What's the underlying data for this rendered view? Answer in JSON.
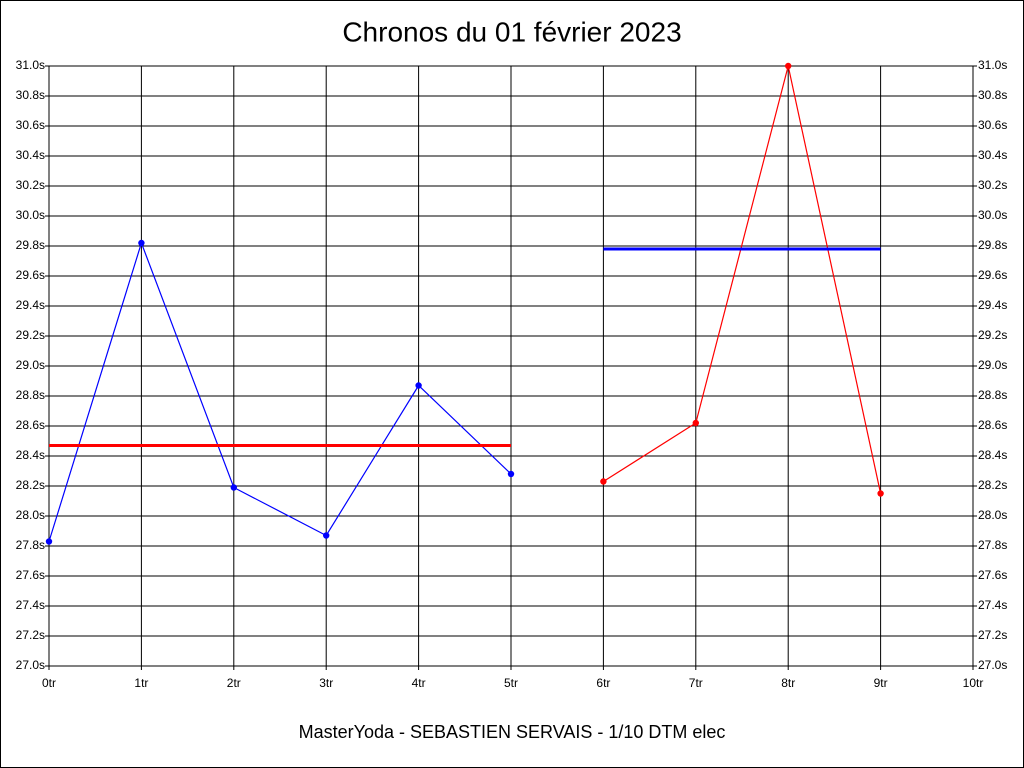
{
  "chart_data": {
    "type": "line",
    "title": "Chronos du 01 février 2023",
    "subtitle": "MasterYoda - SEBASTIEN SERVAIS - 1/10 DTM elec",
    "xlim": [
      0,
      10
    ],
    "xticks": [
      {
        "value": 0,
        "label": "0tr"
      },
      {
        "value": 1,
        "label": "1tr"
      },
      {
        "value": 2,
        "label": "2tr"
      },
      {
        "value": 3,
        "label": "3tr"
      },
      {
        "value": 4,
        "label": "4tr"
      },
      {
        "value": 5,
        "label": "5tr"
      },
      {
        "value": 6,
        "label": "6tr"
      },
      {
        "value": 7,
        "label": "7tr"
      },
      {
        "value": 8,
        "label": "8tr"
      },
      {
        "value": 9,
        "label": "9tr"
      },
      {
        "value": 10,
        "label": "10tr"
      }
    ],
    "ylim": [
      27.0,
      31.0
    ],
    "yticks": [
      {
        "value": 27.0,
        "label": "27.0s"
      },
      {
        "value": 27.2,
        "label": "27.2s"
      },
      {
        "value": 27.4,
        "label": "27.4s"
      },
      {
        "value": 27.6,
        "label": "27.6s"
      },
      {
        "value": 27.8,
        "label": "27.8s"
      },
      {
        "value": 28.0,
        "label": "28.0s"
      },
      {
        "value": 28.2,
        "label": "28.2s"
      },
      {
        "value": 28.4,
        "label": "28.4s"
      },
      {
        "value": 28.6,
        "label": "28.6s"
      },
      {
        "value": 28.8,
        "label": "28.8s"
      },
      {
        "value": 29.0,
        "label": "29.0s"
      },
      {
        "value": 29.2,
        "label": "29.2s"
      },
      {
        "value": 29.4,
        "label": "29.4s"
      },
      {
        "value": 29.6,
        "label": "29.6s"
      },
      {
        "value": 29.8,
        "label": "29.8s"
      },
      {
        "value": 30.0,
        "label": "30.0s"
      },
      {
        "value": 30.2,
        "label": "30.2s"
      },
      {
        "value": 30.4,
        "label": "30.4s"
      },
      {
        "value": 30.6,
        "label": "30.6s"
      },
      {
        "value": 30.8,
        "label": "30.8s"
      },
      {
        "value": 31.0,
        "label": "31.0s"
      }
    ],
    "grid": true,
    "series": [
      {
        "color": "#0000ff",
        "x": [
          0,
          1,
          2,
          3,
          4,
          5
        ],
        "values": [
          27.83,
          29.82,
          28.19,
          27.87,
          28.87,
          28.28
        ],
        "markers": true
      },
      {
        "color": "#ff0000",
        "x": [
          6,
          7,
          8,
          9
        ],
        "values": [
          28.23,
          28.62,
          31.0,
          28.15
        ],
        "markers": true
      },
      {
        "color": "#ff0000",
        "x": [
          0,
          5
        ],
        "values": [
          28.47,
          28.47
        ],
        "markers": false
      },
      {
        "color": "#0000ff",
        "x": [
          6,
          9
        ],
        "values": [
          29.78,
          29.78
        ],
        "markers": false
      }
    ]
  }
}
